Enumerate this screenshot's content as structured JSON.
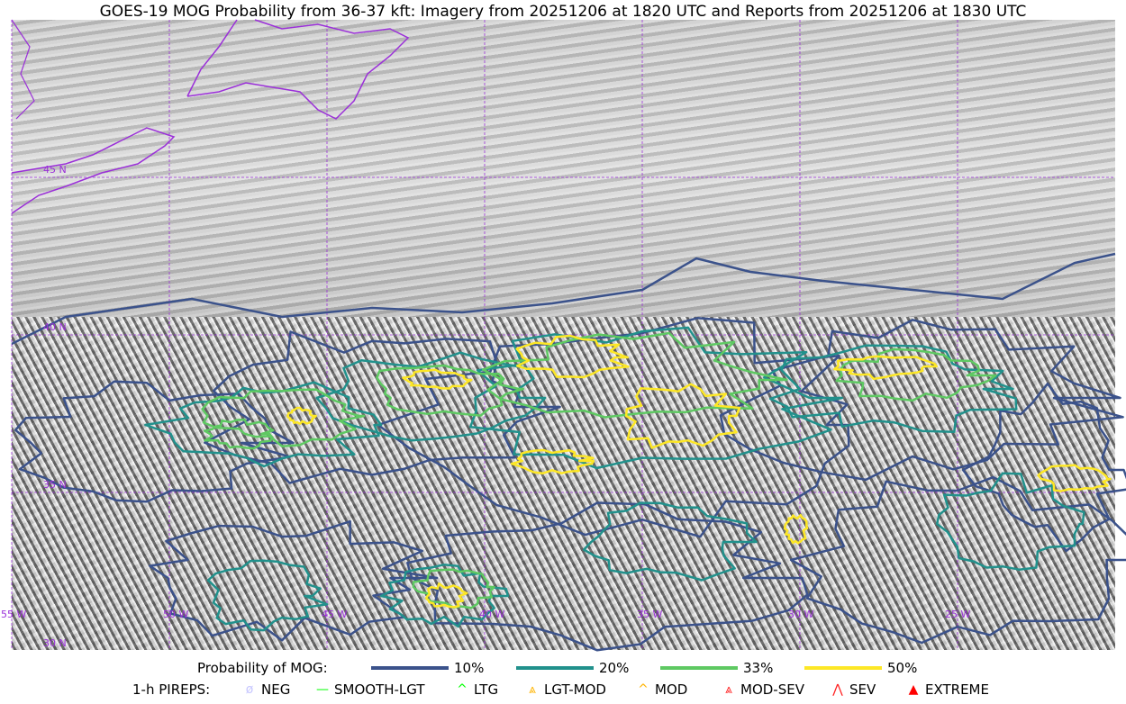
{
  "title": "GOES-19 MOG Probability from 36-37 kft: Imagery from 20251206 at 1820 UTC and Reports from 20251206 at 1830 UTC",
  "map": {
    "longitude_labels": [
      "55 W",
      "50 W",
      "45 W",
      "40 W",
      "35 W",
      "30 W",
      "25 W"
    ],
    "latitude_labels": [
      "45 N",
      "40 N",
      "35 N",
      "30 N"
    ],
    "coastline_color": "#9b30d9",
    "gridline_color": "#9b30d9"
  },
  "legend": {
    "probability_label": "Probability of MOG:",
    "probability_levels": [
      {
        "label": "10%",
        "color": "#3b528b"
      },
      {
        "label": "20%",
        "color": "#21918c"
      },
      {
        "label": "33%",
        "color": "#5ec962"
      },
      {
        "label": "50%",
        "color": "#fde725"
      }
    ],
    "pireps_label": "1-h PIREPS:",
    "pireps": [
      {
        "label": "NEG",
        "color": "#c8c8ff",
        "icon": "neg-circle-icon"
      },
      {
        "label": "SMOOTH-LGT",
        "color": "#00ff00",
        "icon": "line-icon"
      },
      {
        "label": "LTG",
        "color": "#00ff00",
        "icon": "caret-icon"
      },
      {
        "label": "LGT-MOD",
        "color": "#ffb400",
        "icon": "caret-bar-icon"
      },
      {
        "label": "MOD",
        "color": "#ffb400",
        "icon": "caret-icon"
      },
      {
        "label": "MOD-SEV",
        "color": "#ff2020",
        "icon": "double-caret-bar-icon"
      },
      {
        "label": "SEV",
        "color": "#ff2020",
        "icon": "double-caret-icon"
      },
      {
        "label": "EXTREME",
        "color": "#ff0000",
        "icon": "filled-triangle-icon"
      }
    ]
  }
}
